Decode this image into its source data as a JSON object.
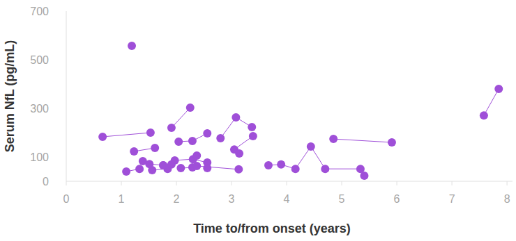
{
  "chart_data": {
    "type": "scatter",
    "x_label": "Time to/from onset (years)",
    "y_label": "Serum NfL (pg/mL)",
    "xlim": [
      0,
      8.1
    ],
    "xticks": [
      0,
      1,
      2,
      3,
      4,
      5,
      6,
      7,
      8
    ],
    "ylim": [
      0,
      700
    ],
    "yticks": [
      0,
      100,
      300,
      500,
      700
    ],
    "grid": false,
    "color": "#9f4fd8",
    "marker": "circle",
    "line_style": "solid",
    "series": [
      {
        "x": [
          0.66,
          1.53
        ],
        "values": [
          183,
          200
        ]
      },
      {
        "x": [
          1.19
        ],
        "values": [
          557
        ]
      },
      {
        "x": [
          1.23,
          1.61
        ],
        "values": [
          123,
          137
        ]
      },
      {
        "x": [
          1.91,
          2.25
        ],
        "values": [
          220,
          303
        ]
      },
      {
        "x": [
          2.04,
          2.29,
          2.56
        ],
        "values": [
          163,
          166,
          197
        ]
      },
      {
        "x": [
          2.8,
          3.08,
          3.37
        ],
        "values": [
          177,
          263,
          223
        ]
      },
      {
        "x": [
          3.05,
          3.39
        ],
        "values": [
          131,
          186
        ]
      },
      {
        "x": [
          3.14
        ],
        "values": [
          114
        ]
      },
      {
        "x": [
          1.09,
          1.33
        ],
        "values": [
          40,
          51
        ]
      },
      {
        "x": [
          1.39,
          1.51,
          1.76
        ],
        "values": [
          83,
          71,
          66
        ]
      },
      {
        "x": [
          1.56,
          1.84
        ],
        "values": [
          46,
          51
        ]
      },
      {
        "x": [
          1.97,
          2.3,
          2.56
        ],
        "values": [
          86,
          91,
          77
        ]
      },
      {
        "x": [
          1.76,
          1.91
        ],
        "values": [
          66,
          69
        ]
      },
      {
        "x": [
          2.08,
          2.29
        ],
        "values": [
          54,
          57
        ]
      },
      {
        "x": [
          2.37,
          3.13
        ],
        "values": [
          63,
          49
        ]
      },
      {
        "x": [
          2.37
        ],
        "values": [
          106
        ]
      },
      {
        "x": [
          2.56
        ],
        "values": [
          54
        ]
      },
      {
        "x": [
          3.67,
          3.9,
          4.16,
          4.44,
          4.7,
          5.34,
          5.41
        ],
        "values": [
          66,
          69,
          51,
          143,
          51,
          51,
          23
        ]
      },
      {
        "x": [
          4.85,
          5.91
        ],
        "values": [
          174,
          160
        ]
      },
      {
        "x": [
          7.58,
          7.85
        ],
        "values": [
          271,
          380
        ]
      }
    ]
  }
}
